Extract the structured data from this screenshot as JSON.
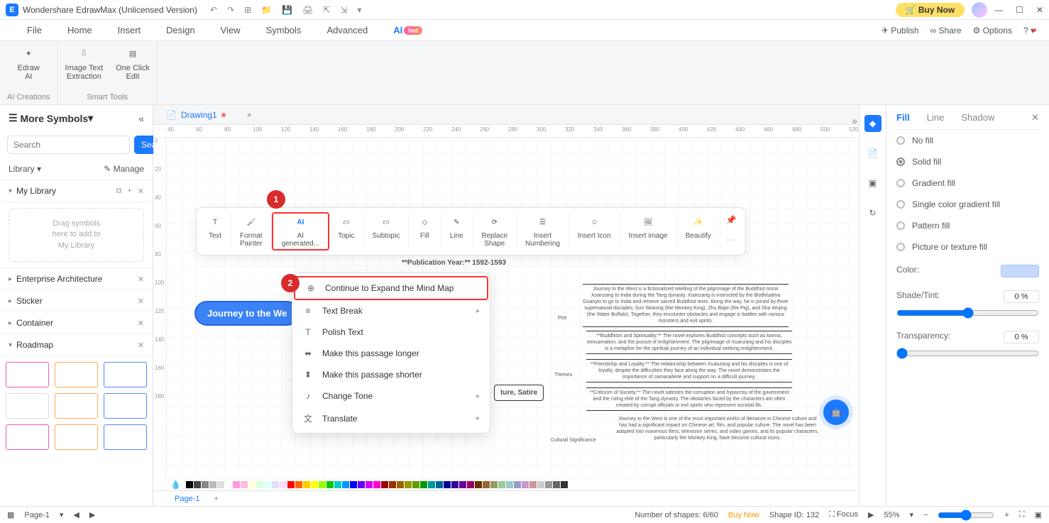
{
  "titlebar": {
    "app_name": "Wondershare EdrawMax (Unlicensed Version)",
    "buy_now": "Buy Now"
  },
  "menu": {
    "tabs": [
      "File",
      "Home",
      "Insert",
      "Design",
      "View",
      "Symbols",
      "Advanced"
    ],
    "ai_tab": "AI",
    "hot": "hot",
    "publish": "Publish",
    "share": "Share",
    "options": "Options"
  },
  "ribbon": {
    "group1_label": "AI Creations",
    "group2_label": "Smart Tools",
    "edraw_ai": "Edraw\nAI",
    "image_text": "Image Text\nExtraction",
    "one_click": "One Click\nEdit"
  },
  "left": {
    "more_symbols": "More Symbols",
    "search_placeholder": "Search",
    "search_btn": "Search",
    "library": "Library",
    "manage": "Manage",
    "my_library": "My Library",
    "drop_hint": "Drag symbols\nhere to add to\nMy Library",
    "sections": [
      "Enterprise Architecture",
      "Sticker",
      "Container",
      "Roadmap"
    ]
  },
  "doc": {
    "tab_name": "Drawing1"
  },
  "ruler_h": [
    40,
    60,
    80,
    100,
    120,
    140,
    160,
    180,
    200,
    220,
    240,
    260,
    280,
    300,
    320,
    340,
    360,
    380,
    400,
    420,
    440,
    460,
    480,
    500,
    520
  ],
  "ruler_v": [
    0,
    20,
    40,
    60,
    80,
    100,
    120,
    140,
    160,
    180
  ],
  "float_tools": {
    "text": "Text",
    "format_painter": "Format\nPainter",
    "ai_gen": "AI\ngenerated...",
    "topic": "Topic",
    "subtopic": "Subtopic",
    "fill": "Fill",
    "line": "Line",
    "replace_shape": "Replace\nShape",
    "insert_numbering": "Insert\nNumbering",
    "insert_icon": "Insert Icon",
    "insert_image": "Insert image",
    "beautify": "Beautify"
  },
  "callouts": {
    "one": "1",
    "two": "2"
  },
  "ctx": {
    "expand": "Continue to Expand the Mind Map",
    "text_break": "Text Break",
    "polish": "Polish Text",
    "longer": "Make this passage longer",
    "shorter": "Make this passage shorter",
    "tone": "Change Tone",
    "translate": "Translate"
  },
  "mindmap": {
    "root": "Journey to the We",
    "pub_year": "**Publication Year:** 1592-1593",
    "genre_line": "ture, Satire",
    "plot_label": "Plot",
    "themes_label": "Themes",
    "cultural_label": "Cultural Significance",
    "plot_text": "Journey to the West is a fictionalized retelling of the pilgrimage of the Buddhist monk Xuanzang to India during the Tang dynasty. Xuanzang is instructed by the Bodhisattva Guanyin to go to India and retrieve sacred Buddhist texts. Along the way, he is joined by three supernatural disciples; Sun Wukong (the Monkey King), Zhu Bajie (the Pig), and Sha Wujing (the Water Buffalo). Together, they encounter obstacles and engage in battles with various monsters and evil spirits.",
    "theme1": "**Buddhism and Spirituality:** The novel explores Buddhist concepts such as karma, reincarnation, and the pursuit of enlightenment. The pilgrimage of Xuanzang and his disciples is a metaphor for the spiritual journey of an individual seeking enlightenment.",
    "theme2": "**Friendship and Loyalty:** The relationship between Xuanzang and his disciples is one of loyalty, despite the difficulties they face along the way. The novel demonstrates the importance of camaraderie and support on a difficult journey.",
    "theme3": "**Criticism of Society:** The novel satirizes the corruption and hypocrisy of the government and the ruling elite of the Tang dynasty. The obstacles faced by the characters are often created by corrupt officials or evil spirits who represent societal ills.",
    "cultural_text": "Journey to the West is one of the most important works of literature in Chinese culture and has had a significant impact on Chinese art, film, and popular culture. The novel has been adapted into numerous films, television series, and video games, and its popular characters, particularly the Monkey King, have become cultural icons."
  },
  "prop": {
    "tabs": {
      "fill": "Fill",
      "line": "Line",
      "shadow": "Shadow"
    },
    "opts": [
      "No fill",
      "Solid fill",
      "Gradient fill",
      "Single color gradient fill",
      "Pattern fill",
      "Picture or texture fill"
    ],
    "selected_opt": 1,
    "color_label": "Color:",
    "shade_label": "Shade/Tint:",
    "shade_val": "0 %",
    "trans_label": "Transparency:",
    "trans_val": "0 %",
    "color_hex": "#c5d9ff"
  },
  "colorstrip": [
    "#000",
    "#444",
    "#888",
    "#bbb",
    "#ddd",
    "#fff",
    "#f9d",
    "#fbd",
    "#ffd",
    "#dfd",
    "#dff",
    "#ddf",
    "#fdf",
    "#f00",
    "#f60",
    "#fc0",
    "#ff0",
    "#9f0",
    "#0c0",
    "#0cc",
    "#09f",
    "#00f",
    "#60f",
    "#c0f",
    "#f0c",
    "#900",
    "#930",
    "#960",
    "#990",
    "#690",
    "#090",
    "#099",
    "#069",
    "#009",
    "#309",
    "#609",
    "#906",
    "#630",
    "#963",
    "#996",
    "#9c9",
    "#9cc",
    "#99c",
    "#c9c",
    "#c99",
    "#ccc",
    "#999",
    "#666",
    "#333"
  ],
  "pagetabs": {
    "page1": "Page-1"
  },
  "status": {
    "page": "Page-1",
    "shapes": "Number of shapes: 6/60",
    "buy": "Buy Now",
    "shape_id": "Shape ID: 132",
    "focus": "Focus",
    "zoom": "55%"
  }
}
